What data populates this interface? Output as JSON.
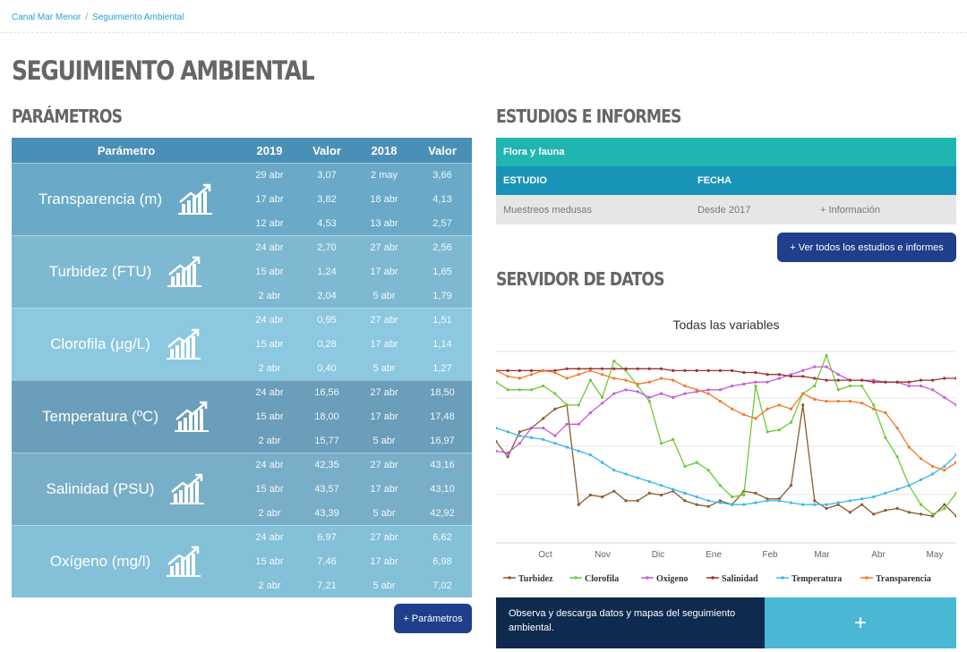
{
  "breadcrumb": {
    "home": "Canal Mar Menor",
    "current": "Seguimiento Ambiental"
  },
  "page_title": "SEGUIMIENTO AMBIENTAL",
  "sections": {
    "params": "PARÁMETROS",
    "studies": "ESTUDIOS E INFORMES",
    "server": "SERVIDOR DE DATOS"
  },
  "param_table": {
    "headers": [
      "Parámetro",
      "2019",
      "Valor",
      "2018",
      "Valor"
    ],
    "rows": [
      {
        "name": "Transparencia (m)",
        "values": [
          [
            "29 abr",
            "3,07",
            "2 may",
            "3,66"
          ],
          [
            "17 abr",
            "3,82",
            "18 abr",
            "4,13"
          ],
          [
            "12 abr",
            "4,53",
            "13 abr",
            "2,57"
          ]
        ]
      },
      {
        "name": "Turbidez (FTU)",
        "values": [
          [
            "24 abr",
            "2,70",
            "27 abr",
            "2,56"
          ],
          [
            "15 abr",
            "1,24",
            "17 abr",
            "1,65"
          ],
          [
            "2 abr",
            "2,04",
            "5 abr",
            "1,79"
          ]
        ]
      },
      {
        "name": "Clorofila (µg/L)",
        "values": [
          [
            "24 abr",
            "0,95",
            "27 abr",
            "1,51"
          ],
          [
            "15 abr",
            "0,28",
            "17 abr",
            "1,14"
          ],
          [
            "2 abr",
            "0,40",
            "5 abr",
            "1,27"
          ]
        ]
      },
      {
        "name": "Temperatura (ºC)",
        "values": [
          [
            "24 abr",
            "16,56",
            "27 abr",
            "18,50"
          ],
          [
            "15 abr",
            "18,00",
            "17 abr",
            "17,48"
          ],
          [
            "2 abr",
            "15,77",
            "5 abr",
            "16,97"
          ]
        ]
      },
      {
        "name": "Salinidad (PSU)",
        "values": [
          [
            "24 abr",
            "42,35",
            "27 abr",
            "43,16"
          ],
          [
            "15 abr",
            "43,57",
            "17 abr",
            "43,10"
          ],
          [
            "2 abr",
            "43,39",
            "5 abr",
            "42,92"
          ]
        ]
      },
      {
        "name": "Oxígeno (mg/l)",
        "values": [
          [
            "24 abr",
            "6,97",
            "27 abr",
            "6,62"
          ],
          [
            "15 abr",
            "7,46",
            "17 abr",
            "6,98"
          ],
          [
            "2 abr",
            "7,21",
            "5 abr",
            "7,02"
          ]
        ]
      }
    ],
    "more_button": "+ Parámetros"
  },
  "studies": {
    "category": "Flora y fauna",
    "headers": {
      "study": "ESTUDIO",
      "date": "FECHA"
    },
    "rows": [
      {
        "study": "Muestreos medusas",
        "date": "Desde 2017",
        "more": "+ Información"
      }
    ],
    "all_button": "+ Ver todos los estudios e informes"
  },
  "chart_data": {
    "type": "line",
    "title": "Todas las variables",
    "x_labels": [
      "Oct",
      "Nov",
      "Dic",
      "Ene",
      "Feb",
      "Mar",
      "Abr",
      "May"
    ],
    "series": [
      {
        "name": "Turbidez",
        "color": "#8b5a2b",
        "values": [
          0.53,
          0.45,
          0.58,
          0.6,
          0.65,
          0.7,
          0.72,
          0.2,
          0.25,
          0.24,
          0.27,
          0.22,
          0.22,
          0.26,
          0.25,
          0.27,
          0.22,
          0.2,
          0.19,
          0.22,
          0.2,
          0.27,
          0.26,
          0.23,
          0.23,
          0.3,
          0.72,
          0.22,
          0.18,
          0.2,
          0.16,
          0.2,
          0.15,
          0.17,
          0.18,
          0.16,
          0.15,
          0.14,
          0.2,
          0.14
        ]
      },
      {
        "name": "Clorofila",
        "color": "#6fc93a",
        "values": [
          0.84,
          0.8,
          0.8,
          0.8,
          0.82,
          0.78,
          0.72,
          0.72,
          0.85,
          0.76,
          0.95,
          0.9,
          0.82,
          0.74,
          0.52,
          0.54,
          0.4,
          0.42,
          0.38,
          0.3,
          0.24,
          0.25,
          0.82,
          0.58,
          0.59,
          0.63,
          0.78,
          0.82,
          0.98,
          0.8,
          0.82,
          0.82,
          0.72,
          0.55,
          0.45,
          0.3,
          0.2,
          0.15,
          0.18,
          0.26
        ]
      },
      {
        "name": "Oxigeno",
        "color": "#c45bd9",
        "values": [
          0.48,
          0.47,
          0.52,
          0.6,
          0.6,
          0.56,
          0.62,
          0.62,
          0.68,
          0.73,
          0.78,
          0.8,
          0.79,
          0.76,
          0.78,
          0.76,
          0.78,
          0.79,
          0.8,
          0.8,
          0.82,
          0.83,
          0.84,
          0.84,
          0.86,
          0.88,
          0.9,
          0.92,
          0.92,
          0.88,
          0.85,
          0.85,
          0.85,
          0.84,
          0.84,
          0.82,
          0.82,
          0.8,
          0.76,
          0.72
        ]
      },
      {
        "name": "Salinidad",
        "color": "#a0312e",
        "values": [
          0.9,
          0.9,
          0.9,
          0.9,
          0.9,
          0.9,
          0.91,
          0.91,
          0.91,
          0.91,
          0.91,
          0.91,
          0.91,
          0.91,
          0.91,
          0.9,
          0.9,
          0.9,
          0.9,
          0.9,
          0.9,
          0.89,
          0.89,
          0.88,
          0.88,
          0.87,
          0.87,
          0.86,
          0.85,
          0.85,
          0.85,
          0.85,
          0.84,
          0.84,
          0.84,
          0.84,
          0.85,
          0.85,
          0.86,
          0.86
        ]
      },
      {
        "name": "Temperatura",
        "color": "#3db7e8",
        "values": [
          0.6,
          0.58,
          0.56,
          0.55,
          0.54,
          0.52,
          0.5,
          0.48,
          0.46,
          0.42,
          0.38,
          0.36,
          0.34,
          0.32,
          0.3,
          0.28,
          0.26,
          0.24,
          0.22,
          0.21,
          0.2,
          0.2,
          0.21,
          0.22,
          0.22,
          0.21,
          0.2,
          0.2,
          0.2,
          0.21,
          0.22,
          0.23,
          0.24,
          0.26,
          0.28,
          0.3,
          0.33,
          0.36,
          0.4,
          0.46
        ]
      },
      {
        "name": "Transparencia",
        "color": "#f07a2a",
        "values": [
          0.9,
          0.87,
          0.86,
          0.88,
          0.9,
          0.89,
          0.86,
          0.88,
          0.9,
          0.88,
          0.86,
          0.85,
          0.83,
          0.84,
          0.86,
          0.85,
          0.82,
          0.8,
          0.78,
          0.74,
          0.7,
          0.67,
          0.65,
          0.7,
          0.72,
          0.7,
          0.78,
          0.75,
          0.74,
          0.74,
          0.74,
          0.73,
          0.7,
          0.68,
          0.6,
          0.5,
          0.44,
          0.4,
          0.38,
          0.42
        ]
      }
    ]
  },
  "data_banner": {
    "text": "Observa y descarga datos y mapas del seguimiento ambiental.",
    "button": "+"
  }
}
